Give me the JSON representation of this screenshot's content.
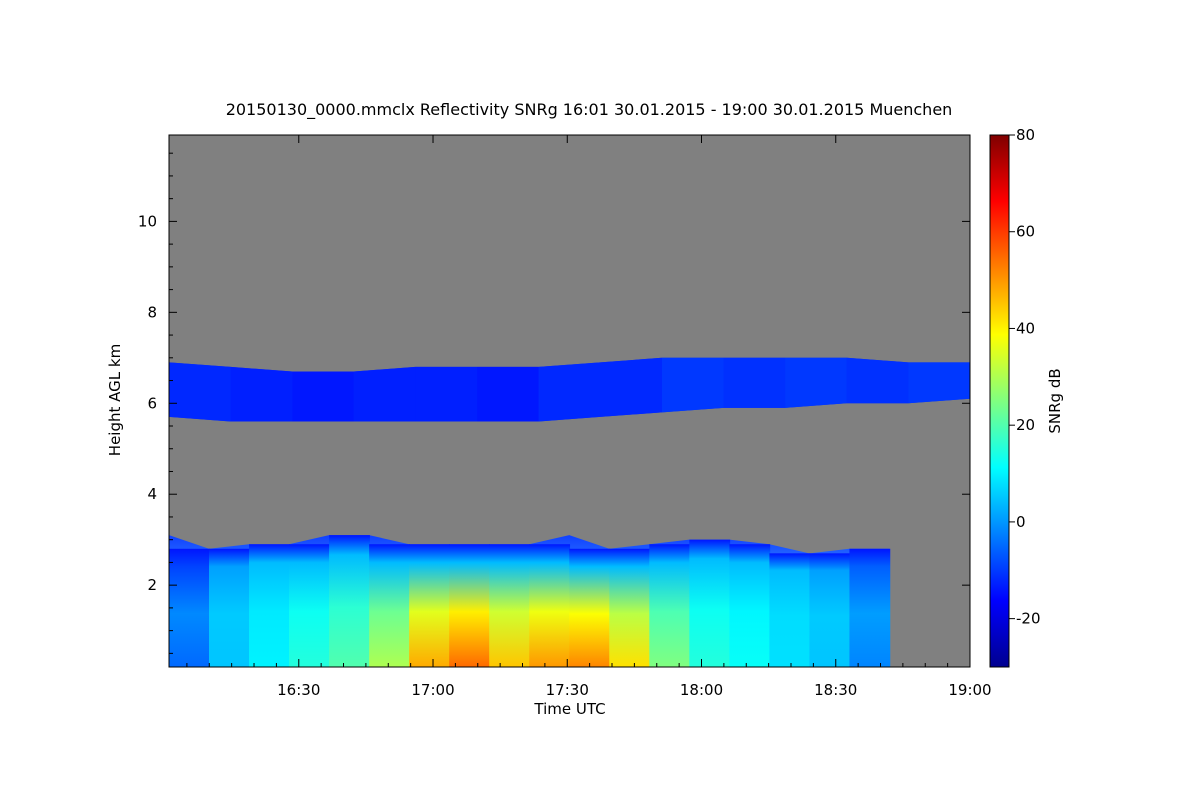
{
  "chart_data": {
    "type": "heatmap",
    "title": "20150130_0000.mmclx Reflectivity SNRg   16:01 30.01.2015 - 19:00 30.01.2015 Muenchen",
    "xlabel": "Time UTC",
    "ylabel": "Height AGL km",
    "colorbar_label": "SNRg dB",
    "x_range_minutes": [
      0,
      179
    ],
    "xlim": [
      "16:01",
      "19:00"
    ],
    "ylim": [
      0.2,
      11.9
    ],
    "x_ticks": [
      "16:30",
      "17:00",
      "17:30",
      "18:00",
      "18:30",
      "19:00"
    ],
    "y_ticks": [
      "2",
      "4",
      "6",
      "8",
      "10"
    ],
    "colorbar_range": [
      -30,
      80
    ],
    "colorbar_ticks": [
      "-20",
      "0",
      "20",
      "40",
      "60",
      "80"
    ],
    "background_color": "#808080",
    "colormap": [
      "#00008f",
      "#0000ff",
      "#0080ff",
      "#00ffff",
      "#80ff80",
      "#ffff00",
      "#ff8000",
      "#ff0000",
      "#800000"
    ],
    "layers": [
      {
        "name": "upper cloud layer",
        "time_start": "16:01",
        "time_end": "19:00",
        "base_km": [
          5.7,
          5.6,
          5.6,
          5.6,
          5.6,
          5.6,
          5.6,
          5.7,
          5.8,
          5.9,
          5.9,
          6.0,
          6.0,
          6.1
        ],
        "top_km": [
          6.9,
          6.8,
          6.7,
          6.7,
          6.8,
          6.8,
          6.8,
          6.9,
          7.0,
          7.0,
          7.0,
          7.0,
          6.9,
          6.9
        ],
        "snr_db": [
          -12,
          -13,
          -14,
          -13,
          -13,
          -14,
          -12,
          -12,
          -10,
          -11,
          -10,
          -11,
          -10,
          -10
        ]
      },
      {
        "name": "lower precipitation layer",
        "time_start": "16:01",
        "time_end": "18:42",
        "top_km": [
          3.1,
          2.8,
          2.9,
          2.9,
          3.1,
          3.1,
          2.9,
          2.9,
          2.9,
          2.9,
          3.1,
          2.8,
          2.9,
          3.0,
          3.0,
          2.9,
          2.7,
          2.8,
          2.8
        ],
        "max_snr_db": [
          -5,
          5,
          10,
          15,
          20,
          30,
          48,
          55,
          45,
          50,
          52,
          42,
          25,
          15,
          12,
          8,
          5,
          -2,
          -5
        ]
      }
    ]
  }
}
